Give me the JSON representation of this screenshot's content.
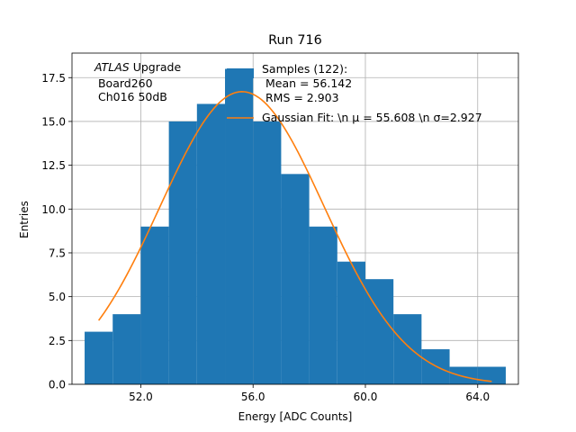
{
  "chart_data": {
    "type": "bar",
    "title": "Run 716",
    "xlabel": "Energy [ADC Counts]",
    "ylabel": "Entries",
    "xlim": [
      49.55,
      65.45
    ],
    "ylim": [
      0,
      18.9
    ],
    "grid": true,
    "xticks": [
      52,
      56,
      60,
      64
    ],
    "xtick_labels": [
      "52.0",
      "56.0",
      "60.0",
      "64.0"
    ],
    "yticks": [
      0,
      2.5,
      5,
      7.5,
      10,
      12.5,
      15,
      17.5
    ],
    "ytick_labels": [
      "0.0",
      "2.5",
      "5.0",
      "7.5",
      "10.0",
      "12.5",
      "15.0",
      "17.5"
    ],
    "bin_edges": [
      50,
      51,
      52,
      53,
      54,
      55,
      56,
      57,
      58,
      59,
      60,
      61,
      62,
      63,
      64,
      65
    ],
    "values": [
      3,
      4,
      9,
      15,
      16,
      18,
      15,
      12,
      9,
      7,
      6,
      4,
      2,
      1,
      1
    ],
    "bar_color": "#1f77b4",
    "fit": {
      "amplitude": 16.7,
      "mu": 55.608,
      "sigma": 2.927,
      "x_range": [
        50.5,
        64.5
      ],
      "color": "#ff7f0e"
    },
    "annotation": {
      "line1_italic": "ATLAS",
      "line1_rest": " Upgrade",
      "line2": " Board260",
      "line3": " Ch016 50dB"
    },
    "legend": {
      "location": "top-right",
      "entries": [
        {
          "kind": "patch",
          "lines": [
            "Samples (122):",
            " Mean = 56.142",
            " RMS = 2.903"
          ]
        },
        {
          "kind": "line",
          "label": "Gaussian Fit: \\n μ = 55.608 \\n σ=2.927"
        }
      ]
    }
  }
}
